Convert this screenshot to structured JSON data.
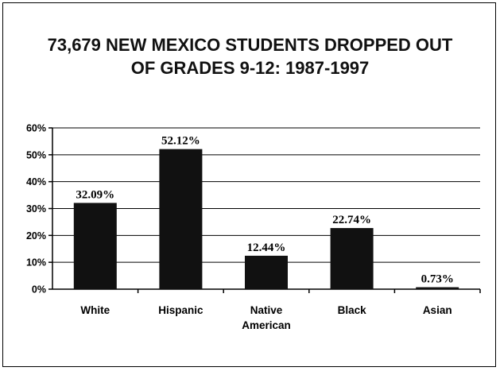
{
  "chart_data": {
    "type": "bar",
    "title_lines": [
      "73,679 NEW MEXICO STUDENTS DROPPED OUT",
      "OF GRADES 9-12: 1987-1997"
    ],
    "categories": [
      [
        "White"
      ],
      [
        "Hispanic"
      ],
      [
        "Native",
        "American"
      ],
      [
        "Black"
      ],
      [
        "Asian"
      ]
    ],
    "values": [
      32.09,
      52.12,
      12.44,
      22.74,
      0.73
    ],
    "data_labels": [
      "32.09%",
      "52.12%",
      "12.44%",
      "22.74%",
      "0.73%"
    ],
    "yticks": [
      "0%",
      "10%",
      "20%",
      "30%",
      "40%",
      "50%",
      "60%"
    ],
    "ylim": [
      0,
      60
    ],
    "grid": true,
    "bar_color": "#111111"
  }
}
